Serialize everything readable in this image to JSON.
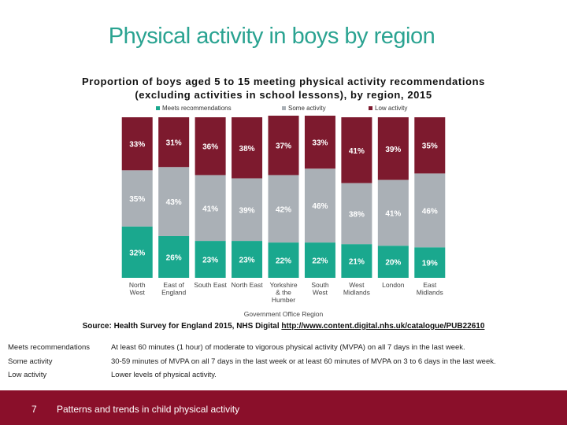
{
  "slide": {
    "title": "Physical activity in boys by region",
    "source_prefix": "Source: Health Survey for England 2015, NHS Digital ",
    "source_url": "http://www.content.digital.nhs.uk/catalogue/PUB22610",
    "footer": {
      "page_number": "7",
      "text": "Patterns and trends in child physical activity"
    },
    "definitions": [
      {
        "term": "Meets recommendations",
        "text": "At least 60 minutes (1 hour) of moderate to vigorous physical activity (MVPA) on all 7 days in the last week."
      },
      {
        "term": "Some activity",
        "text": "30-59 minutes of MVPA on all 7 days in the last week or at least 60 minutes of MVPA on 3 to 6 days in the last week."
      },
      {
        "term": "Low activity",
        "text": "Lower levels of physical activity."
      }
    ]
  },
  "chart_data": {
    "type": "bar",
    "stacked": true,
    "title": "Proportion of boys aged 5 to 15 meeting physical activity recommendations",
    "subtitle": "(excluding activities in school lessons), by region, 2015",
    "xlabel": "Government Office Region",
    "ylabel": "",
    "ylim": [
      0,
      100
    ],
    "grid": false,
    "legend_position": "top",
    "value_suffix": "%",
    "categories": [
      [
        "North",
        "West"
      ],
      [
        "East of",
        "England"
      ],
      [
        "South East"
      ],
      [
        "North East"
      ],
      [
        "Yorkshire",
        "& the",
        "Humber"
      ],
      [
        "South",
        "West"
      ],
      [
        "West",
        "Midlands"
      ],
      [
        "London"
      ],
      [
        "East",
        "Midlands"
      ]
    ],
    "series": [
      {
        "name": "Meets recommendations",
        "color": "#1aa88e",
        "values": [
          32,
          26,
          23,
          23,
          22,
          22,
          21,
          20,
          19
        ]
      },
      {
        "name": "Some activity",
        "color": "#aab0b6",
        "values": [
          35,
          43,
          41,
          39,
          42,
          46,
          38,
          41,
          46
        ]
      },
      {
        "name": "Low activity",
        "color": "#7d1a2e",
        "values": [
          33,
          31,
          36,
          38,
          37,
          33,
          41,
          39,
          35
        ]
      }
    ]
  }
}
